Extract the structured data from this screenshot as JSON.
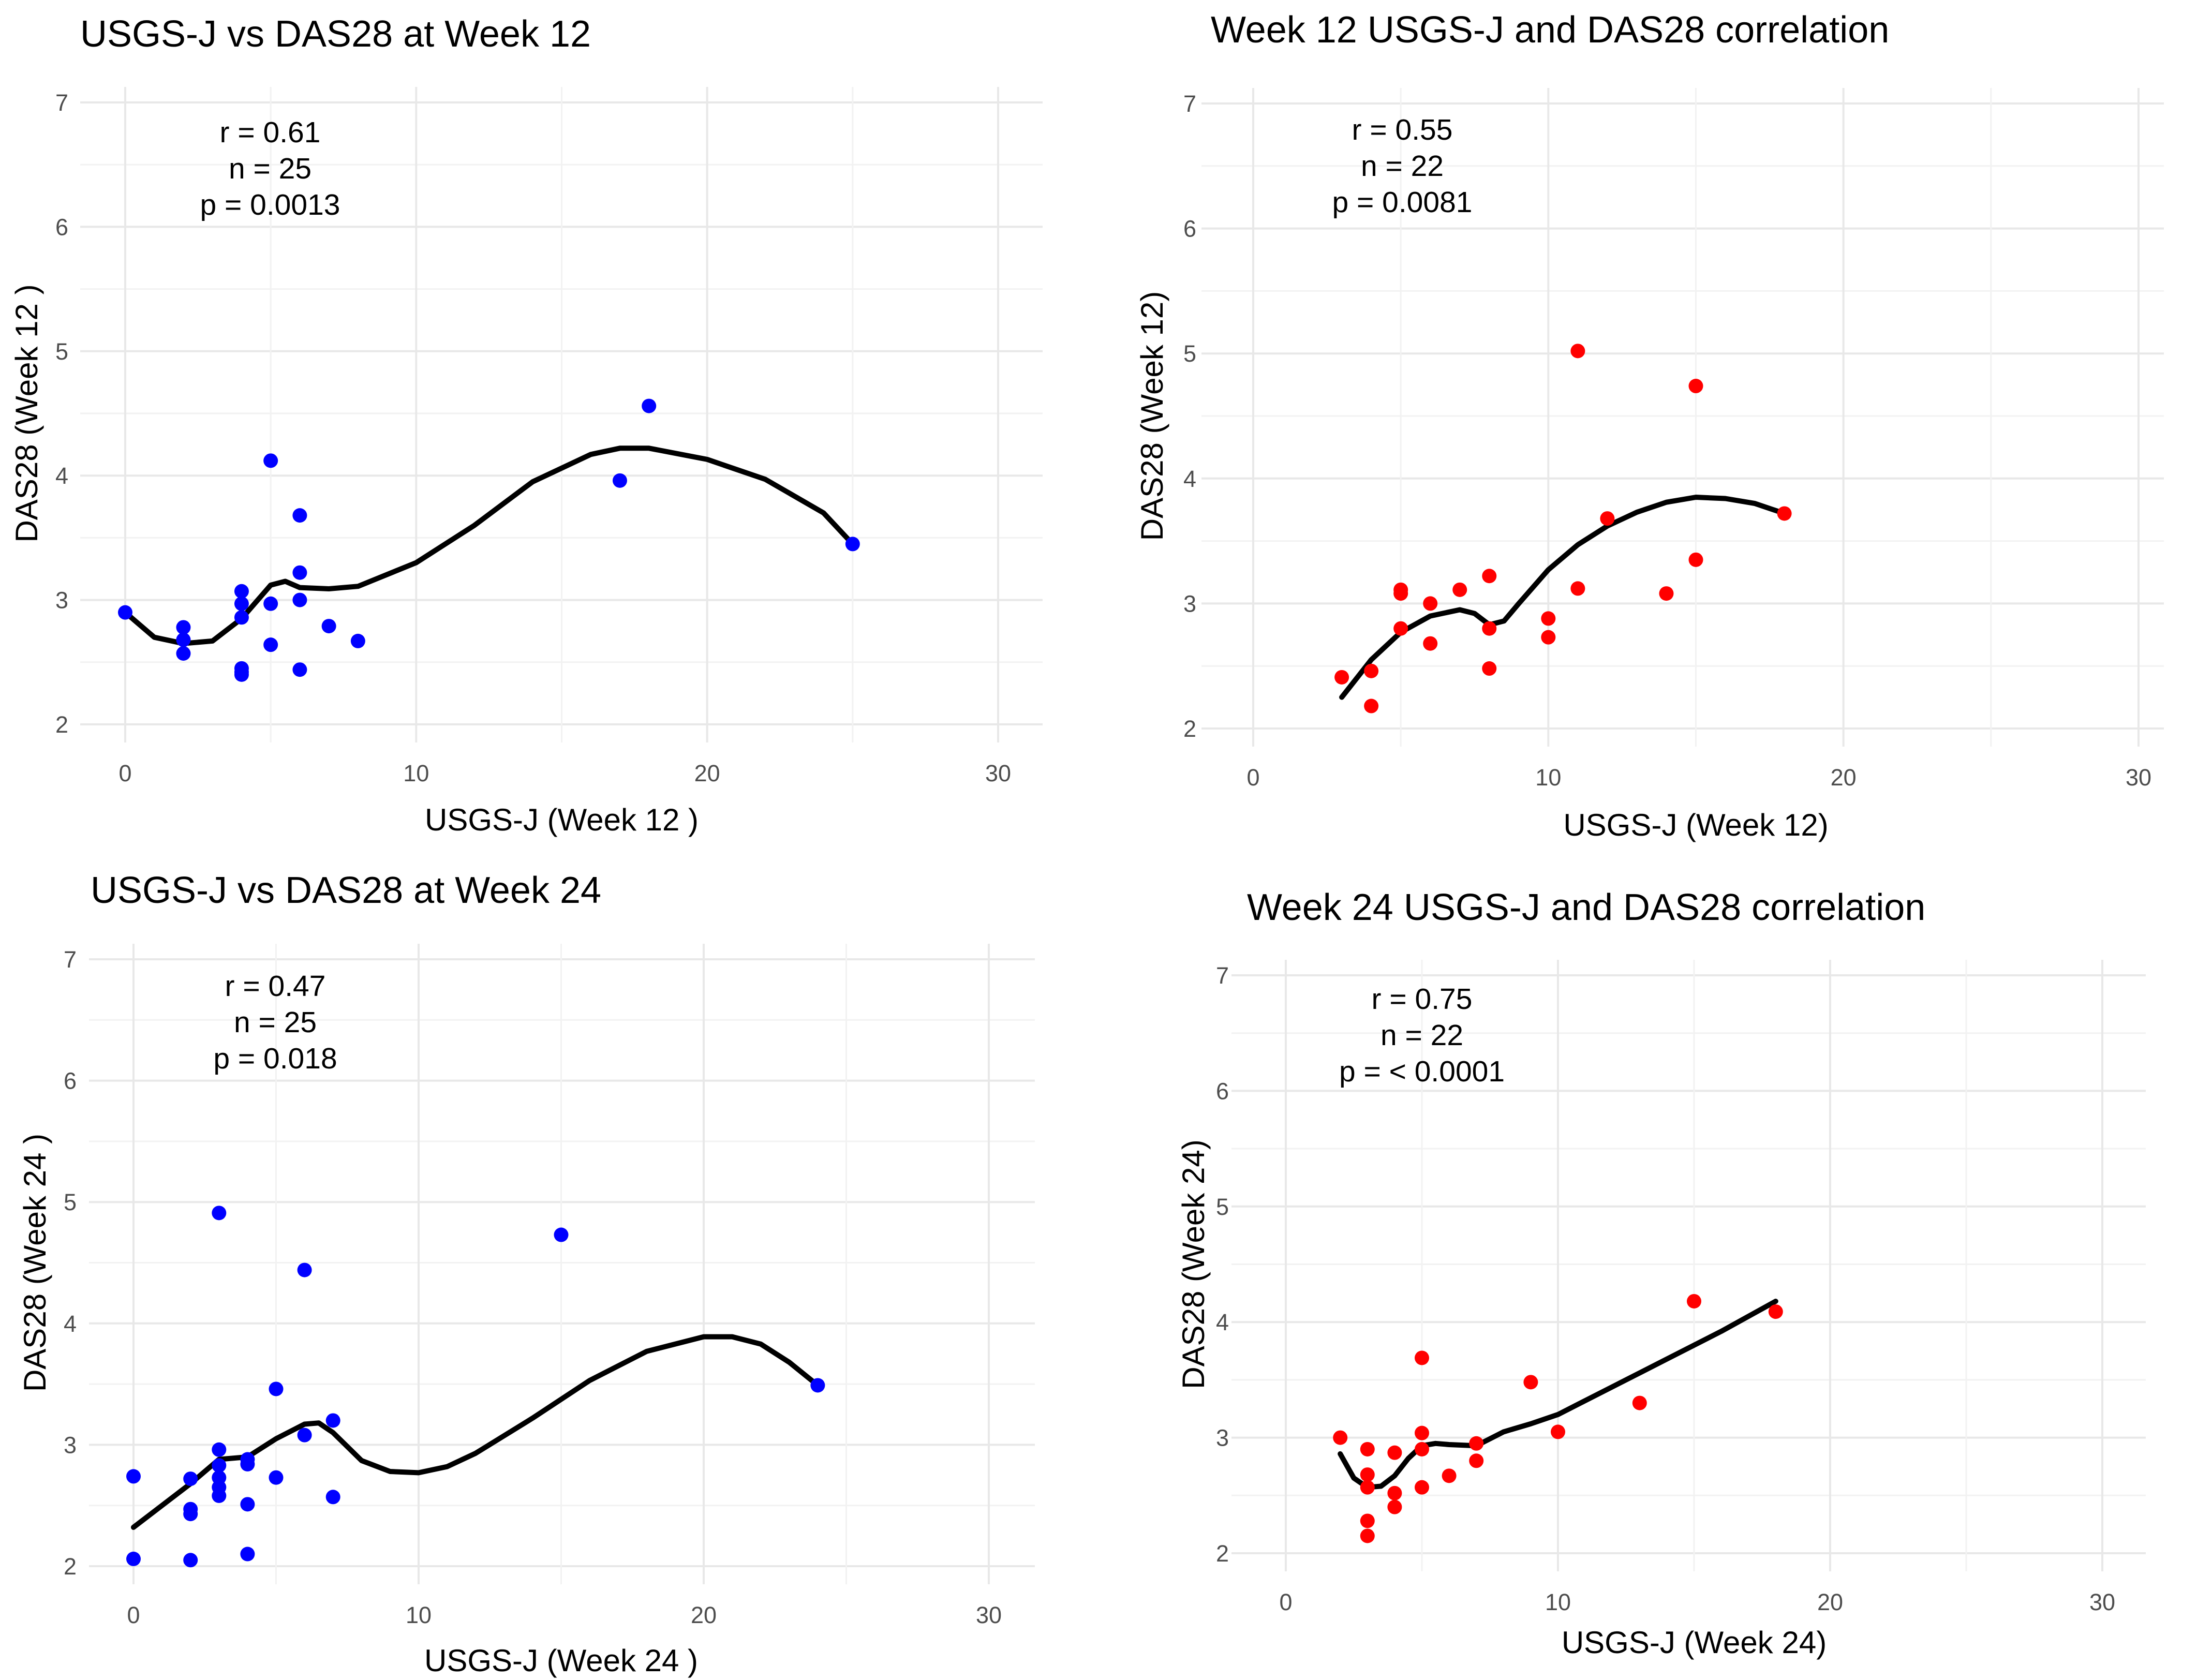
{
  "chart_data": [
    {
      "id": "p1",
      "type": "scatter",
      "title": "USGS-J vs DAS28 at Week 12",
      "xlabel": "USGS-J (Week 12 )",
      "ylabel": "DAS28 (Week 12 )",
      "xlim": [
        0,
        30
      ],
      "ylim": [
        2,
        7
      ],
      "x_ticks": [
        "0",
        "10",
        "20",
        "30"
      ],
      "y_ticks": [
        "2",
        "3",
        "4",
        "5",
        "6",
        "7"
      ],
      "point_color": "#0000ff",
      "stats": [
        "r = 0.61",
        "n = 25",
        "p = 0.0013"
      ],
      "points": [
        {
          "x": 0,
          "y": 2.9
        },
        {
          "x": 2,
          "y": 2.78
        },
        {
          "x": 2,
          "y": 2.68
        },
        {
          "x": 2,
          "y": 2.57
        },
        {
          "x": 4,
          "y": 3.07
        },
        {
          "x": 4,
          "y": 2.97
        },
        {
          "x": 4,
          "y": 2.86
        },
        {
          "x": 4,
          "y": 2.45
        },
        {
          "x": 4,
          "y": 2.42
        },
        {
          "x": 4,
          "y": 2.4
        },
        {
          "x": 5,
          "y": 4.12
        },
        {
          "x": 5,
          "y": 2.97
        },
        {
          "x": 5,
          "y": 2.64
        },
        {
          "x": 6,
          "y": 3.68
        },
        {
          "x": 6,
          "y": 3.22
        },
        {
          "x": 6,
          "y": 3.0
        },
        {
          "x": 6,
          "y": 2.44
        },
        {
          "x": 7,
          "y": 2.79
        },
        {
          "x": 8,
          "y": 2.67
        },
        {
          "x": 17,
          "y": 3.96
        },
        {
          "x": 18,
          "y": 4.56
        },
        {
          "x": 25,
          "y": 3.45
        }
      ],
      "smooth": [
        {
          "x": 0,
          "y": 2.9
        },
        {
          "x": 1,
          "y": 2.7
        },
        {
          "x": 2,
          "y": 2.65
        },
        {
          "x": 3,
          "y": 2.67
        },
        {
          "x": 4,
          "y": 2.85
        },
        {
          "x": 5,
          "y": 3.12
        },
        {
          "x": 5.5,
          "y": 3.15
        },
        {
          "x": 6,
          "y": 3.1
        },
        {
          "x": 7,
          "y": 3.09
        },
        {
          "x": 8,
          "y": 3.11
        },
        {
          "x": 10,
          "y": 3.3
        },
        {
          "x": 12,
          "y": 3.6
        },
        {
          "x": 14,
          "y": 3.95
        },
        {
          "x": 16,
          "y": 4.17
        },
        {
          "x": 17,
          "y": 4.22
        },
        {
          "x": 18,
          "y": 4.22
        },
        {
          "x": 20,
          "y": 4.13
        },
        {
          "x": 22,
          "y": 3.97
        },
        {
          "x": 24,
          "y": 3.7
        },
        {
          "x": 25,
          "y": 3.45
        }
      ]
    },
    {
      "id": "p2",
      "type": "scatter",
      "title": "Week 12 USGS-J and DAS28 correlation",
      "xlabel": "USGS-J (Week 12)",
      "ylabel": "DAS28 (Week 12)",
      "xlim": [
        0,
        30
      ],
      "ylim": [
        2,
        7
      ],
      "x_ticks": [
        "0",
        "10",
        "20",
        "30"
      ],
      "y_ticks": [
        "2",
        "3",
        "4",
        "5",
        "6",
        "7"
      ],
      "point_color": "#ff0000",
      "stats": [
        "r = 0.55",
        "n = 22",
        "p = 0.0081"
      ],
      "points": [
        {
          "x": 3,
          "y": 2.41
        },
        {
          "x": 4,
          "y": 2.46
        },
        {
          "x": 4,
          "y": 2.18
        },
        {
          "x": 5,
          "y": 3.11
        },
        {
          "x": 5,
          "y": 3.08
        },
        {
          "x": 5,
          "y": 2.8
        },
        {
          "x": 6,
          "y": 3.0
        },
        {
          "x": 6,
          "y": 2.68
        },
        {
          "x": 7,
          "y": 3.11
        },
        {
          "x": 8,
          "y": 3.22
        },
        {
          "x": 8,
          "y": 2.8
        },
        {
          "x": 8,
          "y": 2.48
        },
        {
          "x": 10,
          "y": 2.88
        },
        {
          "x": 10,
          "y": 2.73
        },
        {
          "x": 11,
          "y": 5.02
        },
        {
          "x": 11,
          "y": 3.12
        },
        {
          "x": 12,
          "y": 3.68
        },
        {
          "x": 14,
          "y": 3.08
        },
        {
          "x": 15,
          "y": 4.74
        },
        {
          "x": 15,
          "y": 3.35
        },
        {
          "x": 18,
          "y": 3.72
        }
      ],
      "smooth": [
        {
          "x": 3,
          "y": 2.25
        },
        {
          "x": 4,
          "y": 2.55
        },
        {
          "x": 5,
          "y": 2.77
        },
        {
          "x": 6,
          "y": 2.9
        },
        {
          "x": 7,
          "y": 2.95
        },
        {
          "x": 7.5,
          "y": 2.92
        },
        {
          "x": 8,
          "y": 2.83
        },
        {
          "x": 8.5,
          "y": 2.86
        },
        {
          "x": 9,
          "y": 3.0
        },
        {
          "x": 10,
          "y": 3.27
        },
        {
          "x": 11,
          "y": 3.47
        },
        {
          "x": 12,
          "y": 3.62
        },
        {
          "x": 13,
          "y": 3.73
        },
        {
          "x": 14,
          "y": 3.81
        },
        {
          "x": 15,
          "y": 3.85
        },
        {
          "x": 16,
          "y": 3.84
        },
        {
          "x": 17,
          "y": 3.8
        },
        {
          "x": 18,
          "y": 3.72
        }
      ]
    },
    {
      "id": "p3",
      "type": "scatter",
      "title": "USGS-J vs DAS28 at Week 24",
      "xlabel": "USGS-J (Week 24 )",
      "ylabel": "DAS28 (Week 24 )",
      "xlim": [
        0,
        30
      ],
      "ylim": [
        2,
        7
      ],
      "x_ticks": [
        "0",
        "10",
        "20",
        "30"
      ],
      "y_ticks": [
        "2",
        "3",
        "4",
        "5",
        "6",
        "7"
      ],
      "point_color": "#0000ff",
      "stats": [
        "r = 0.47",
        "n = 25",
        "p = 0.018"
      ],
      "points": [
        {
          "x": 0,
          "y": 2.74
        },
        {
          "x": 0,
          "y": 2.06
        },
        {
          "x": 2,
          "y": 2.72
        },
        {
          "x": 2,
          "y": 2.47
        },
        {
          "x": 2,
          "y": 2.43
        },
        {
          "x": 2,
          "y": 2.05
        },
        {
          "x": 3,
          "y": 4.91
        },
        {
          "x": 3,
          "y": 2.96
        },
        {
          "x": 3,
          "y": 2.83
        },
        {
          "x": 3,
          "y": 2.73
        },
        {
          "x": 3,
          "y": 2.65
        },
        {
          "x": 3,
          "y": 2.58
        },
        {
          "x": 4,
          "y": 2.88
        },
        {
          "x": 4,
          "y": 2.84
        },
        {
          "x": 4,
          "y": 2.51
        },
        {
          "x": 4,
          "y": 2.1
        },
        {
          "x": 5,
          "y": 3.46
        },
        {
          "x": 5,
          "y": 2.73
        },
        {
          "x": 6,
          "y": 4.44
        },
        {
          "x": 6,
          "y": 3.08
        },
        {
          "x": 7,
          "y": 3.2
        },
        {
          "x": 7,
          "y": 2.57
        },
        {
          "x": 15,
          "y": 4.73
        },
        {
          "x": 24,
          "y": 3.49
        }
      ],
      "smooth": [
        {
          "x": 0,
          "y": 2.32
        },
        {
          "x": 1,
          "y": 2.5
        },
        {
          "x": 2,
          "y": 2.68
        },
        {
          "x": 3,
          "y": 2.88
        },
        {
          "x": 4,
          "y": 2.9
        },
        {
          "x": 5,
          "y": 3.05
        },
        {
          "x": 6,
          "y": 3.17
        },
        {
          "x": 6.5,
          "y": 3.18
        },
        {
          "x": 7,
          "y": 3.1
        },
        {
          "x": 8,
          "y": 2.87
        },
        {
          "x": 9,
          "y": 2.78
        },
        {
          "x": 10,
          "y": 2.77
        },
        {
          "x": 11,
          "y": 2.82
        },
        {
          "x": 12,
          "y": 2.93
        },
        {
          "x": 14,
          "y": 3.22
        },
        {
          "x": 16,
          "y": 3.53
        },
        {
          "x": 18,
          "y": 3.77
        },
        {
          "x": 20,
          "y": 3.89
        },
        {
          "x": 21,
          "y": 3.89
        },
        {
          "x": 22,
          "y": 3.83
        },
        {
          "x": 23,
          "y": 3.68
        },
        {
          "x": 24,
          "y": 3.49
        }
      ]
    },
    {
      "id": "p4",
      "type": "scatter",
      "title": "Week 24 USGS-J and DAS28 correlation",
      "xlabel": "USGS-J (Week 24)",
      "ylabel": "DAS28 (Week 24)",
      "xlim": [
        0,
        30
      ],
      "ylim": [
        2,
        7
      ],
      "x_ticks": [
        "0",
        "10",
        "20",
        "30"
      ],
      "y_ticks": [
        "2",
        "3",
        "4",
        "5",
        "6",
        "7"
      ],
      "point_color": "#ff0000",
      "stats": [
        "r = 0.75",
        "n = 22",
        "p = < 0.0001"
      ],
      "points": [
        {
          "x": 2,
          "y": 3.0
        },
        {
          "x": 3,
          "y": 2.9
        },
        {
          "x": 3,
          "y": 2.68
        },
        {
          "x": 3,
          "y": 2.57
        },
        {
          "x": 3,
          "y": 2.28
        },
        {
          "x": 3,
          "y": 2.15
        },
        {
          "x": 4,
          "y": 2.87
        },
        {
          "x": 4,
          "y": 2.52
        },
        {
          "x": 4,
          "y": 2.4
        },
        {
          "x": 5,
          "y": 3.69
        },
        {
          "x": 5,
          "y": 3.04
        },
        {
          "x": 5,
          "y": 2.9
        },
        {
          "x": 5,
          "y": 2.57
        },
        {
          "x": 6,
          "y": 2.67
        },
        {
          "x": 7,
          "y": 2.95
        },
        {
          "x": 7,
          "y": 2.8
        },
        {
          "x": 9,
          "y": 3.48
        },
        {
          "x": 10,
          "y": 3.05
        },
        {
          "x": 13,
          "y": 3.3
        },
        {
          "x": 15,
          "y": 4.18
        },
        {
          "x": 18,
          "y": 4.09
        }
      ],
      "smooth": [
        {
          "x": 2,
          "y": 2.86
        },
        {
          "x": 2.5,
          "y": 2.65
        },
        {
          "x": 3,
          "y": 2.57
        },
        {
          "x": 3.5,
          "y": 2.58
        },
        {
          "x": 4,
          "y": 2.67
        },
        {
          "x": 4.5,
          "y": 2.82
        },
        {
          "x": 5,
          "y": 2.93
        },
        {
          "x": 5.5,
          "y": 2.95
        },
        {
          "x": 6,
          "y": 2.94
        },
        {
          "x": 7,
          "y": 2.93
        },
        {
          "x": 8,
          "y": 3.05
        },
        {
          "x": 9,
          "y": 3.12
        },
        {
          "x": 10,
          "y": 3.2
        },
        {
          "x": 12,
          "y": 3.44
        },
        {
          "x": 14,
          "y": 3.68
        },
        {
          "x": 16,
          "y": 3.92
        },
        {
          "x": 18,
          "y": 4.18
        }
      ]
    }
  ]
}
